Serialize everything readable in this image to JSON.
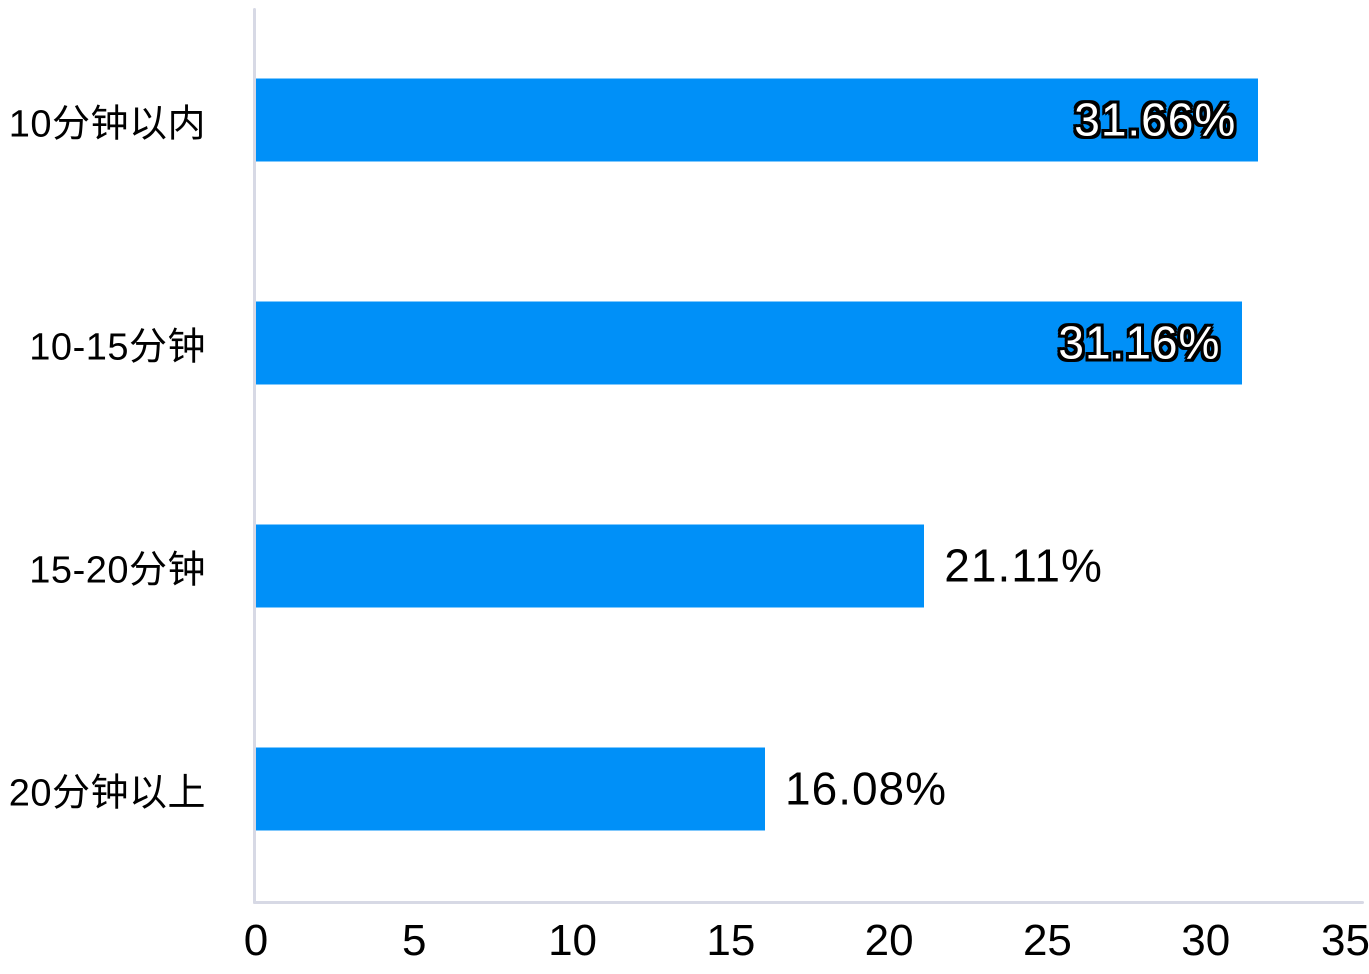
{
  "chart_data": {
    "type": "bar",
    "orientation": "horizontal",
    "title": "",
    "xlabel": "",
    "ylabel": "",
    "categories": [
      "10分钟以内",
      "10-15分钟",
      "15-20分钟",
      "20分钟以上"
    ],
    "values": [
      31.66,
      31.16,
      21.11,
      16.08
    ],
    "value_labels": [
      "31.66%",
      "31.16%",
      "21.11%",
      "16.08%"
    ],
    "value_label_placement": [
      "inside",
      "inside",
      "outside",
      "outside"
    ],
    "xlim": [
      0,
      35
    ],
    "x_ticks": [
      "0",
      "5",
      "10",
      "15",
      "20",
      "25",
      "30",
      "35"
    ],
    "grid": false,
    "legend": "none",
    "colors": {
      "bar": "#0090F8",
      "axis_line": "#d7d9e5",
      "category_text": "#000000",
      "outside_value_text": "#000000",
      "inside_value_text": "#ffffff",
      "inside_value_outline": "#000000",
      "background": "#ffffff"
    }
  }
}
